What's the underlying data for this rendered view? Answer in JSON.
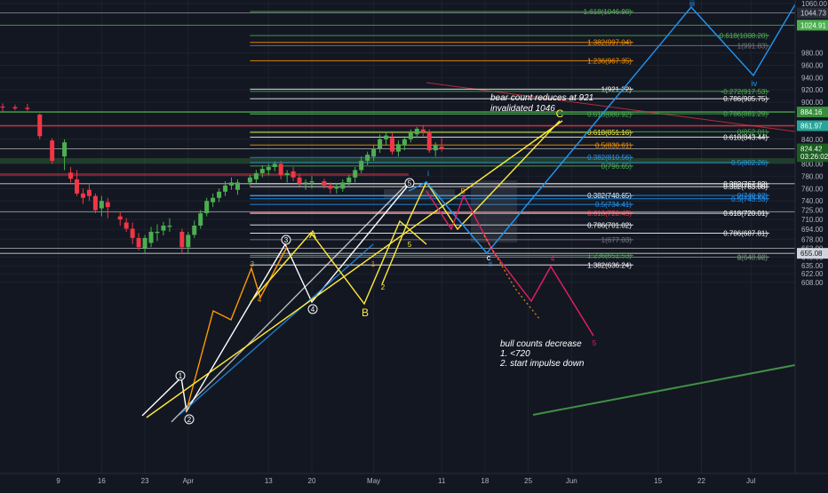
{
  "theme": {
    "background": "#131722",
    "grid": "#1e222d",
    "axis_text": "#b2b5be",
    "up_candle": "#4caf50",
    "down_candle": "#f23645",
    "yellow": "#ffeb3b",
    "blue": "#2196f3",
    "pink": "#e91e63",
    "orange": "#ff9800",
    "green_fib": "#4caf50",
    "white": "#ffffff"
  },
  "price_scale": {
    "ticks": [
      "1060.00",
      "980.00",
      "960.00",
      "940.00",
      "920.00",
      "900.00",
      "860.00",
      "840.00",
      "800.00",
      "780.00",
      "760.00",
      "740.00",
      "725.00",
      "710.00",
      "694.00",
      "678.00",
      "663.00",
      "649.00",
      "635.00",
      "622.00",
      "608.00"
    ],
    "badges": [
      {
        "text": "1044.73",
        "bg": "#2a2e39",
        "fg": "#d1d4dc",
        "price": 1044.73
      },
      {
        "text": "1024.91",
        "bg": "#4caf50",
        "fg": "#ffffff",
        "price": 1024.91
      },
      {
        "text": "884.16",
        "bg": "#388e3c",
        "fg": "#ffffff",
        "price": 884.16
      },
      {
        "text": "861.97",
        "bg": "#26a69a",
        "fg": "#ffffff",
        "price": 861.97
      },
      {
        "text": "824.42",
        "bg": "#1b5e20",
        "fg": "#ffffff",
        "price": 824.42
      },
      {
        "text": "03:26:02",
        "bg": "#1b5e20",
        "fg": "#ffffff",
        "price": 812
      },
      {
        "text": "655.08",
        "bg": "#d1d4dc",
        "fg": "#131722",
        "price": 655.08
      }
    ]
  },
  "time_scale": {
    "labels": [
      {
        "text": "9",
        "x": 9
      },
      {
        "text": "16",
        "x": 16
      },
      {
        "text": "23",
        "x": 23
      },
      {
        "text": "Apr",
        "x": 30
      },
      {
        "text": "13",
        "x": 43
      },
      {
        "text": "20",
        "x": 50
      },
      {
        "text": "May",
        "x": 60
      },
      {
        "text": "11",
        "x": 71
      },
      {
        "text": "18",
        "x": 78
      },
      {
        "text": "25",
        "x": 85
      },
      {
        "text": "Jun",
        "x": 92
      },
      {
        "text": "15",
        "x": 106
      },
      {
        "text": "22",
        "x": 113
      },
      {
        "text": "Jul",
        "x": 121
      }
    ]
  },
  "chart_data": {
    "type": "candlestick",
    "x_unit": "trading day index",
    "candles": [
      [
        0,
        893,
        898,
        885,
        892
      ],
      [
        2,
        892,
        896,
        887,
        890
      ],
      [
        4,
        891,
        897,
        886,
        889
      ],
      [
        6,
        880,
        882,
        840,
        845
      ],
      [
        8,
        838,
        842,
        800,
        805
      ],
      [
        10,
        812,
        840,
        790,
        835
      ],
      [
        11,
        786,
        795,
        770,
        776
      ],
      [
        12,
        775,
        790,
        748,
        752
      ],
      [
        13,
        752,
        760,
        735,
        745
      ],
      [
        14,
        758,
        768,
        740,
        748
      ],
      [
        15,
        748,
        752,
        720,
        725
      ],
      [
        16,
        728,
        748,
        715,
        740
      ],
      [
        17,
        738,
        745,
        712,
        730
      ],
      [
        19,
        715,
        722,
        700,
        710
      ],
      [
        20,
        705,
        712,
        690,
        695
      ],
      [
        21,
        695,
        705,
        670,
        680
      ],
      [
        22,
        680,
        688,
        660,
        665
      ],
      [
        23,
        663,
        685,
        655,
        680
      ],
      [
        24,
        672,
        698,
        665,
        690
      ],
      [
        25,
        688,
        702,
        675,
        690
      ],
      [
        26,
        692,
        706,
        684,
        700
      ],
      [
        27,
        698,
        712,
        690,
        700
      ],
      [
        29,
        690,
        695,
        655,
        665
      ],
      [
        30,
        665,
        690,
        655,
        685
      ],
      [
        31,
        685,
        708,
        680,
        700
      ],
      [
        32,
        700,
        725,
        695,
        720
      ],
      [
        33,
        720,
        745,
        715,
        740
      ],
      [
        34,
        738,
        752,
        730,
        745
      ],
      [
        35,
        745,
        760,
        738,
        755
      ],
      [
        36,
        755,
        772,
        748,
        765
      ],
      [
        37,
        765,
        778,
        758,
        770
      ],
      [
        38,
        758,
        775,
        750,
        770
      ],
      [
        40,
        770,
        782,
        765,
        778
      ],
      [
        41,
        775,
        790,
        768,
        785
      ],
      [
        42,
        785,
        798,
        778,
        792
      ],
      [
        43,
        790,
        800,
        782,
        795
      ],
      [
        44,
        795,
        804,
        788,
        800
      ],
      [
        45,
        800,
        805,
        775,
        782
      ],
      [
        46,
        782,
        790,
        770,
        785
      ],
      [
        47,
        788,
        795,
        772,
        778
      ],
      [
        48,
        778,
        784,
        764,
        768
      ],
      [
        49,
        768,
        775,
        758,
        770
      ],
      [
        50,
        770,
        780,
        760,
        772
      ],
      [
        52,
        772,
        776,
        760,
        765
      ],
      [
        53,
        765,
        770,
        752,
        760
      ],
      [
        54,
        760,
        768,
        752,
        764
      ],
      [
        55,
        760,
        775,
        755,
        770
      ],
      [
        56,
        770,
        782,
        765,
        778
      ],
      [
        57,
        778,
        795,
        770,
        790
      ],
      [
        58,
        790,
        812,
        785,
        805
      ],
      [
        59,
        805,
        820,
        798,
        815
      ],
      [
        60,
        812,
        830,
        805,
        825
      ],
      [
        61,
        825,
        848,
        818,
        840
      ],
      [
        62,
        840,
        852,
        830,
        846
      ],
      [
        63,
        842,
        850,
        815,
        820
      ],
      [
        64,
        820,
        838,
        812,
        832
      ],
      [
        65,
        830,
        845,
        822,
        840
      ],
      [
        66,
        840,
        856,
        835,
        850
      ],
      [
        67,
        848,
        860,
        842,
        857
      ],
      [
        68,
        856,
        863,
        845,
        852
      ],
      [
        69,
        852,
        856,
        818,
        822
      ],
      [
        70,
        822,
        835,
        812,
        830
      ],
      [
        71,
        828,
        842,
        820,
        824
      ]
    ]
  },
  "annotations": {
    "bear_note": [
      "bear count reduces at 921",
      "invalidated 1046"
    ],
    "bull_note": [
      "bull counts decrease",
      "1.   <720",
      "2. start impulse down"
    ],
    "wave_labels": {
      "A": "A",
      "B": "B",
      "C": "C",
      "i": "i",
      "ii": "ii",
      "iii": "iii",
      "iv": "iv",
      "c": "c",
      "circle_1": "1",
      "circle_2": "2",
      "circle_3": "3",
      "circle_4": "4",
      "circle_5": "5",
      "small_3": "3",
      "small_4": "4",
      "small_1": "1",
      "small_2": "2",
      "small_5": "5",
      "small_B": "B",
      "pink_4": "4",
      "pink_5": "5"
    }
  },
  "fib_levels": [
    {
      "text": "1.618(1046.98)",
      "price": 1046.98,
      "x1": 40,
      "x2": 102,
      "color": "#4caf50"
    },
    {
      "text": "-0.618(1008.20)",
      "price": 1008.2,
      "x1": 40,
      "x2": 124,
      "color": "#4caf50"
    },
    {
      "text": "1.382(997.04)",
      "price": 997.04,
      "x1": 40,
      "x2": 102,
      "color": "#ff9800"
    },
    {
      "text": "1(991.83)",
      "price": 991.83,
      "x1": 40,
      "x2": 124,
      "color": "#787b86"
    },
    {
      "text": "1.236(967.35)",
      "price": 967.35,
      "x1": 40,
      "x2": 102,
      "color": "#ff9800"
    },
    {
      "text": "1(921.22)",
      "price": 921.22,
      "x1": 40,
      "x2": 102,
      "color": "#ffffff"
    },
    {
      "text": "-0.272(917.53)",
      "price": 917.53,
      "x1": 40,
      "x2": 124,
      "color": "#4caf50"
    },
    {
      "text": "0.786(905.75)",
      "price": 905.75,
      "x1": 40,
      "x2": 124,
      "color": "#ffffff"
    },
    {
      "text": "0.618(880.92)",
      "price": 880.92,
      "x1": 40,
      "x2": 102,
      "color": "#4caf50"
    },
    {
      "text": "0.786(881.29)",
      "price": 881.29,
      "x1": 40,
      "x2": 124,
      "color": "#4caf50"
    },
    {
      "text": "0.618(851.16)",
      "price": 851.16,
      "x1": 40,
      "x2": 102,
      "color": "#ffeb3b"
    },
    {
      "text": "0(852.01)",
      "price": 852.01,
      "x1": 40,
      "x2": 124,
      "color": "#4caf50"
    },
    {
      "text": "0.618(843.44)",
      "price": 843.44,
      "x1": 40,
      "x2": 124,
      "color": "#ffffff"
    },
    {
      "text": "0.5(830.61)",
      "price": 830.61,
      "x1": 40,
      "x2": 102,
      "color": "#ff9800"
    },
    {
      "text": "0.382(810.56)",
      "price": 810.56,
      "x1": 40,
      "x2": 102,
      "color": "#2196f3"
    },
    {
      "text": "0.5(802.26)",
      "price": 802.26,
      "x1": 40,
      "x2": 124,
      "color": "#2196f3"
    },
    {
      "text": "0(796.65)",
      "price": 796.65,
      "x1": 40,
      "x2": 102,
      "color": "#4caf50"
    },
    {
      "text": "0.382(767.82)",
      "price": 767.82,
      "x1": 40,
      "x2": 124,
      "color": "#ffffff"
    },
    {
      "text": "0.382(763.08)",
      "price": 763.08,
      "x1": 40,
      "x2": 124,
      "color": "#ffffff"
    },
    {
      "text": "0.382(748.65)",
      "price": 748.65,
      "x1": 40,
      "x2": 102,
      "color": "#ffffff"
    },
    {
      "text": "0(748.92)",
      "price": 748.92,
      "x1": 40,
      "x2": 124,
      "color": "#2196f3"
    },
    {
      "text": "0.5(743.53)",
      "price": 743.53,
      "x1": 40,
      "x2": 124,
      "color": "#2196f3"
    },
    {
      "text": "0.5(734.41)",
      "price": 734.41,
      "x1": 40,
      "x2": 102,
      "color": "#2196f3"
    },
    {
      "text": "0.618(720.45)",
      "price": 720.45,
      "x1": 40,
      "x2": 102,
      "color": "#f23645"
    },
    {
      "text": "0.618(720.01)",
      "price": 720.01,
      "x1": 40,
      "x2": 124,
      "color": "#ffffff"
    },
    {
      "text": "0.786(701.02)",
      "price": 701.02,
      "x1": 40,
      "x2": 102,
      "color": "#ffffff"
    },
    {
      "text": "0.786(687.81)",
      "price": 687.81,
      "x1": 40,
      "x2": 124,
      "color": "#ffffff"
    },
    {
      "text": "1(677.03)",
      "price": 677.03,
      "x1": 40,
      "x2": 102,
      "color": "#787b86"
    },
    {
      "text": "1.236(651.53)",
      "price": 651.53,
      "x1": 40,
      "x2": 102,
      "color": "#4caf50"
    },
    {
      "text": "0(648.92)",
      "price": 648.92,
      "x1": 40,
      "x2": 124,
      "color": "#4caf50"
    },
    {
      "text": "1(648.86)",
      "price": 648.86,
      "x1": 40,
      "x2": 124,
      "color": "#787b86"
    },
    {
      "text": "1.382(636.24)",
      "price": 636.24,
      "x1": 40,
      "x2": 102,
      "color": "#ffffff"
    }
  ]
}
